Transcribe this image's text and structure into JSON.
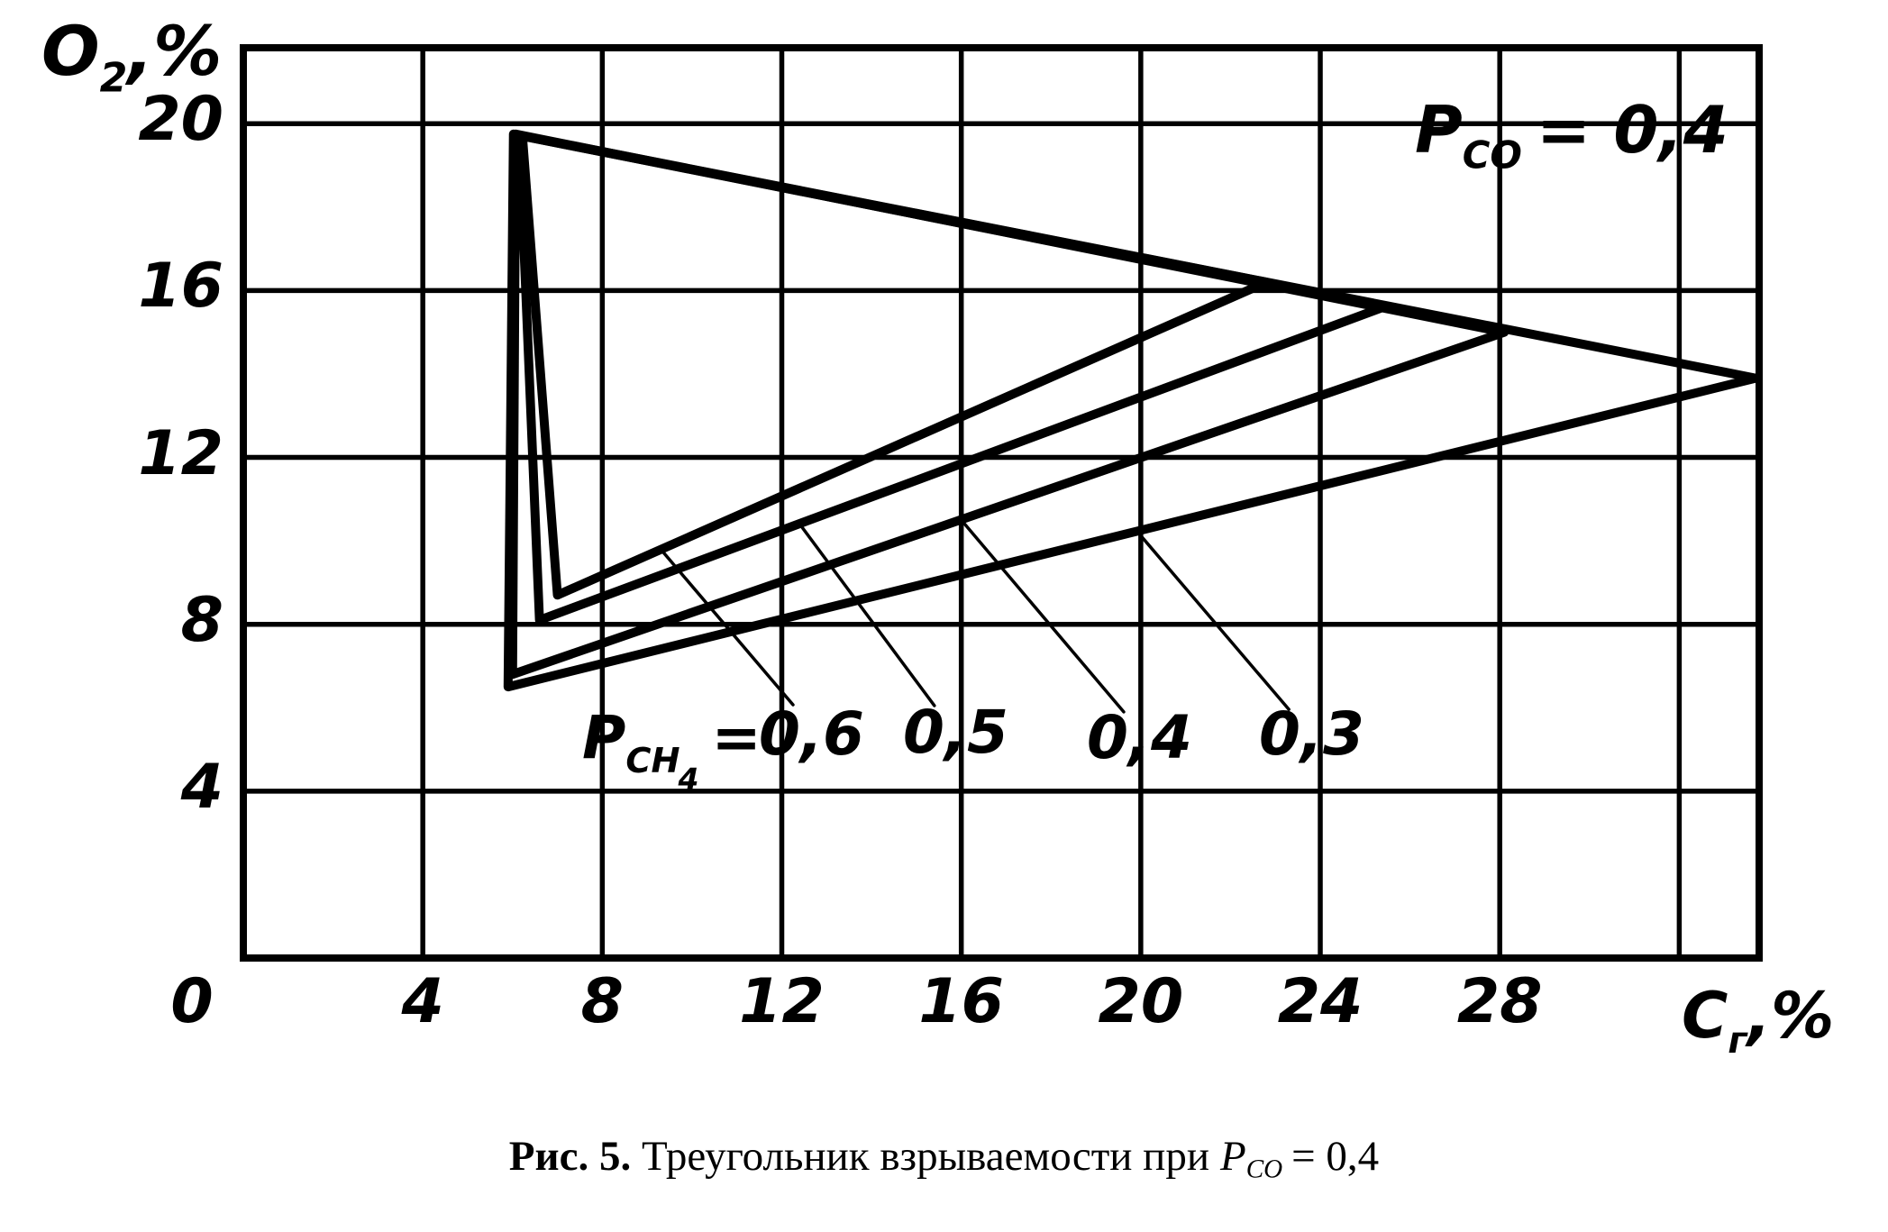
{
  "page": {
    "background": "#ffffff",
    "ink": "#000000"
  },
  "chart_data": {
    "type": "line",
    "title": "Треугольник взрываемости при P_CO = 0,4",
    "x_axis": {
      "label_main": "C",
      "label_sub": "г",
      "label_rest": ",%",
      "min": 0,
      "max": 33.78,
      "tick_values": [
        0,
        4,
        8,
        12,
        16,
        20,
        24,
        28
      ],
      "tick_labels": [
        "0",
        "4",
        "8",
        "12",
        "16",
        "20",
        "24",
        "28"
      ],
      "gridline_values": [
        4,
        8,
        12,
        16,
        20,
        24,
        28,
        32
      ]
    },
    "y_axis": {
      "label_main": "O",
      "label_sub": "2",
      "label_rest": ",%",
      "min": 0,
      "max": 21.82,
      "tick_values": [
        20,
        16,
        12,
        8,
        4
      ],
      "tick_labels": [
        "20",
        "16",
        "12",
        "8",
        "4"
      ],
      "gridline_values": [
        4,
        8,
        12,
        16,
        20
      ]
    },
    "grid": true,
    "annotation": {
      "main": "P",
      "sub": "CO",
      "rest": "= 0,4"
    },
    "series_label": {
      "main": "P",
      "sub": "CH",
      "sub2": "4",
      "rest": "="
    },
    "series": [
      {
        "p_ch4": 0.6,
        "label": "0,6",
        "vertices": [
          [
            6.22,
            19.7
          ],
          [
            7.0,
            8.7
          ],
          [
            22.8,
            16.2
          ]
        ]
      },
      {
        "p_ch4": 0.5,
        "label": "0,5",
        "vertices": [
          [
            6.15,
            19.72
          ],
          [
            6.6,
            8.1
          ],
          [
            25.4,
            15.6
          ]
        ]
      },
      {
        "p_ch4": 0.4,
        "label": "0,4",
        "vertices": [
          [
            6.07,
            19.75
          ],
          [
            6.0,
            6.8
          ],
          [
            28.1,
            15.0
          ]
        ]
      },
      {
        "p_ch4": 0.3,
        "label": "0,3",
        "vertices": [
          [
            6.02,
            19.75
          ],
          [
            5.9,
            6.5
          ],
          [
            33.7,
            13.9
          ]
        ]
      }
    ],
    "leaders": [
      {
        "from": [
          9.3,
          9.8
        ],
        "to": [
          12.25,
          6.07
        ]
      },
      {
        "from": [
          12.4,
          10.4
        ],
        "to": [
          15.4,
          6.05
        ]
      },
      {
        "from": [
          16.0,
          10.5
        ],
        "to": [
          19.62,
          5.9
        ]
      },
      {
        "from": [
          19.9,
          10.25
        ],
        "to": [
          23.3,
          5.96
        ]
      }
    ]
  },
  "caption": {
    "prefix": "Рис. 5.",
    "body": "Треугольник взрываемости при",
    "p_main": "P",
    "p_sub": "CO",
    "value": "= 0,4"
  }
}
